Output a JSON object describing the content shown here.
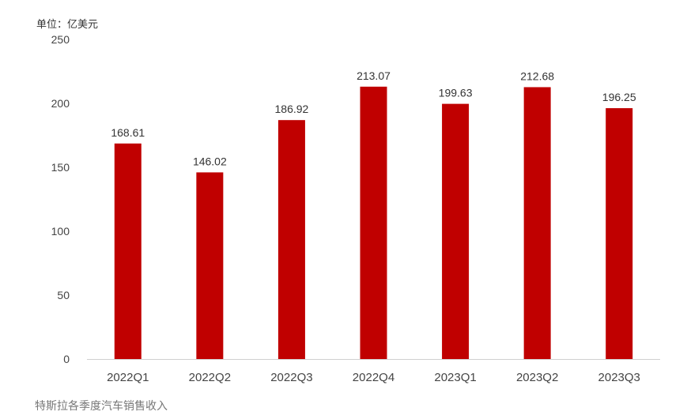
{
  "chart_data": {
    "type": "bar",
    "unit_label": "单位：亿美元",
    "categories": [
      "2022Q1",
      "2022Q2",
      "2022Q3",
      "2022Q4",
      "2023Q1",
      "2023Q2",
      "2023Q3"
    ],
    "values": [
      168.61,
      146.02,
      186.92,
      213.07,
      199.63,
      212.68,
      196.25
    ],
    "data_labels": [
      "168.61",
      "146.02",
      "186.92",
      "213.07",
      "199.63",
      "212.68",
      "196.25"
    ],
    "ylim": [
      0,
      250
    ],
    "yticks": [
      0,
      50,
      100,
      150,
      200,
      250
    ],
    "grid": false,
    "legend": "none",
    "bar_color": "#c00000",
    "caption": "特斯拉各季度汽车销售收入"
  }
}
